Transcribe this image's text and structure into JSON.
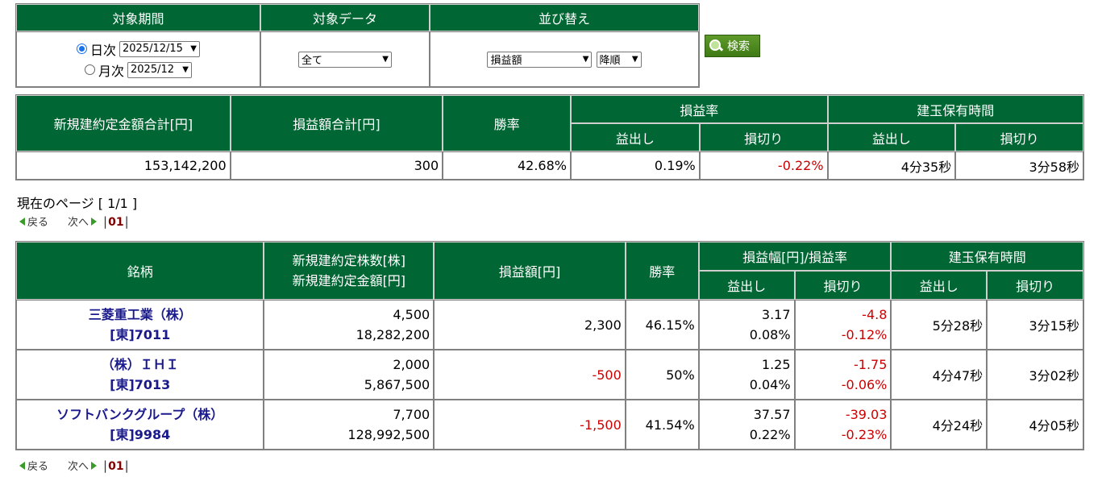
{
  "filter": {
    "headers": [
      "対象期間",
      "対象データ",
      "並び替え"
    ],
    "daily_label": "日次",
    "daily_value": "2025/12/15",
    "monthly_label": "月次",
    "monthly_value": "2025/12",
    "data_value": "全て",
    "sort_value": "損益額",
    "order_value": "降順",
    "search_label": "検索"
  },
  "summary": {
    "headers": {
      "total_amount": "新規建約定金額合計[円]",
      "total_pl": "損益額合計[円]",
      "win_rate": "勝率",
      "pl_rate": "損益率",
      "hold_time": "建玉保有時間",
      "profit": "益出し",
      "loss": "損切り"
    },
    "values": {
      "total_amount": "153,142,200",
      "total_pl": "300",
      "win_rate": "42.68%",
      "rate_profit": "0.19%",
      "rate_loss": "-0.22%",
      "time_profit": "4分35秒",
      "time_loss": "3分58秒"
    }
  },
  "pager": {
    "current_page": "現在のページ [ 1/1 ]",
    "back": "戻る",
    "next": "次へ",
    "page": "01"
  },
  "detail": {
    "headers": {
      "name": "銘柄",
      "shares": "新規建約定株数[株]",
      "amount": "新規建約定金額[円]",
      "pl": "損益額[円]",
      "win_rate": "勝率",
      "range": "損益幅[円]/損益率",
      "hold_time": "建玉保有時間",
      "profit": "益出し",
      "loss": "損切り"
    },
    "rows": [
      {
        "name": "三菱重工業（株）",
        "code": "[東]7011",
        "shares": "4,500",
        "amount": "18,282,200",
        "pl": "2,300",
        "win": "46.15%",
        "p_range": "3.17",
        "p_rate": "0.08%",
        "l_range": "-4.8",
        "l_rate": "-0.12%",
        "t_profit": "5分28秒",
        "t_loss": "3分15秒"
      },
      {
        "name": "（株）ＩＨＩ",
        "code": "[東]7013",
        "shares": "2,000",
        "amount": "5,867,500",
        "pl": "-500",
        "win": "50%",
        "p_range": "1.25",
        "p_rate": "0.04%",
        "l_range": "-1.75",
        "l_rate": "-0.06%",
        "t_profit": "4分47秒",
        "t_loss": "3分02秒"
      },
      {
        "name": "ソフトバンクグループ（株）",
        "code": "[東]9984",
        "shares": "7,700",
        "amount": "128,992,500",
        "pl": "-1,500",
        "win": "41.54%",
        "p_range": "37.57",
        "p_rate": "0.22%",
        "l_range": "-39.03",
        "l_rate": "-0.23%",
        "t_profit": "4分24秒",
        "t_loss": "4分05秒"
      }
    ]
  },
  "colors": {
    "header_bg": "#006633",
    "negative": "#cc0000",
    "link": "#1a1a8c"
  }
}
